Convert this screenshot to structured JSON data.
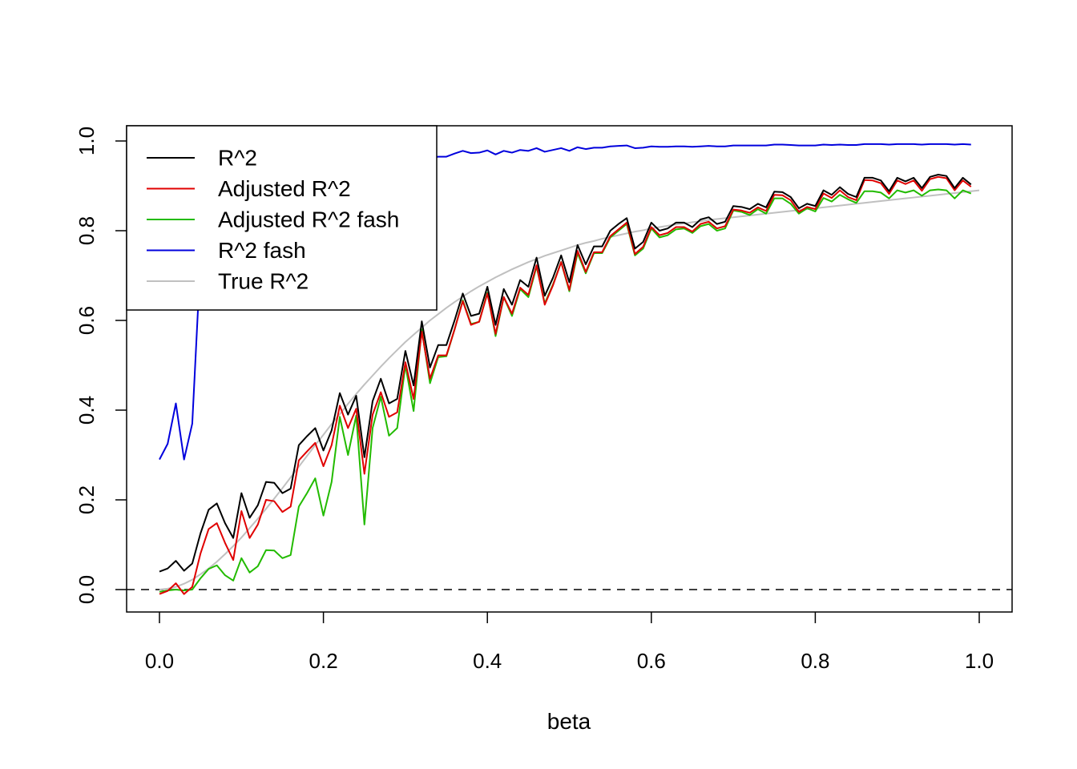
{
  "chart_data": {
    "type": "line",
    "title": "",
    "xlabel": "beta",
    "ylabel": "",
    "xlim": [
      0,
      1
    ],
    "ylim": [
      0,
      1
    ],
    "x_ticks": [
      "0.0",
      "0.2",
      "0.4",
      "0.6",
      "0.8",
      "1.0"
    ],
    "y_ticks": [
      "0.0",
      "0.2",
      "0.4",
      "0.6",
      "0.8",
      "1.0"
    ],
    "grid": false,
    "legend_position": "top-left",
    "reference_line": {
      "y": 0,
      "style": "dashed",
      "color": "#000000"
    },
    "x_start": 0,
    "x_step": 0.01,
    "series": [
      {
        "name": "R^2",
        "color": "#000000",
        "values": [
          0.04,
          0.047,
          0.064,
          0.042,
          0.058,
          0.125,
          0.178,
          0.192,
          0.148,
          0.115,
          0.215,
          0.16,
          0.188,
          0.24,
          0.238,
          0.215,
          0.225,
          0.322,
          0.342,
          0.36,
          0.31,
          0.355,
          0.438,
          0.39,
          0.432,
          0.295,
          0.42,
          0.47,
          0.415,
          0.425,
          0.532,
          0.455,
          0.598,
          0.495,
          0.545,
          0.545,
          0.6,
          0.66,
          0.61,
          0.615,
          0.675,
          0.59,
          0.67,
          0.635,
          0.69,
          0.675,
          0.74,
          0.655,
          0.695,
          0.745,
          0.685,
          0.768,
          0.725,
          0.765,
          0.765,
          0.8,
          0.815,
          0.828,
          0.76,
          0.775,
          0.818,
          0.8,
          0.805,
          0.818,
          0.818,
          0.808,
          0.825,
          0.83,
          0.815,
          0.82,
          0.855,
          0.853,
          0.848,
          0.86,
          0.852,
          0.887,
          0.886,
          0.875,
          0.85,
          0.86,
          0.855,
          0.89,
          0.88,
          0.897,
          0.882,
          0.875,
          0.918,
          0.918,
          0.912,
          0.888,
          0.918,
          0.91,
          0.918,
          0.895,
          0.92,
          0.925,
          0.922,
          0.895,
          0.918,
          0.903
        ]
      },
      {
        "name": "Adjusted R^2",
        "color": "#e00000",
        "values": [
          -0.01,
          -0.003,
          0.014,
          -0.01,
          0.006,
          0.08,
          0.135,
          0.148,
          0.104,
          0.066,
          0.175,
          0.115,
          0.145,
          0.2,
          0.197,
          0.173,
          0.185,
          0.288,
          0.308,
          0.327,
          0.275,
          0.322,
          0.41,
          0.36,
          0.403,
          0.258,
          0.39,
          0.44,
          0.385,
          0.395,
          0.507,
          0.425,
          0.575,
          0.47,
          0.522,
          0.522,
          0.58,
          0.643,
          0.59,
          0.597,
          0.66,
          0.57,
          0.652,
          0.615,
          0.673,
          0.657,
          0.723,
          0.635,
          0.678,
          0.73,
          0.668,
          0.755,
          0.708,
          0.752,
          0.752,
          0.788,
          0.803,
          0.818,
          0.748,
          0.764,
          0.808,
          0.79,
          0.795,
          0.808,
          0.808,
          0.798,
          0.815,
          0.82,
          0.805,
          0.81,
          0.847,
          0.845,
          0.84,
          0.852,
          0.844,
          0.88,
          0.879,
          0.868,
          0.842,
          0.853,
          0.848,
          0.883,
          0.873,
          0.89,
          0.875,
          0.868,
          0.913,
          0.912,
          0.906,
          0.882,
          0.912,
          0.904,
          0.912,
          0.889,
          0.915,
          0.92,
          0.917,
          0.89,
          0.912,
          0.898
        ]
      },
      {
        "name": "Adjusted R^2 fash",
        "color": "#22bb00",
        "values": [
          -0.005,
          -0.002,
          0.0,
          -0.002,
          0.0,
          0.025,
          0.046,
          0.054,
          0.032,
          0.02,
          0.07,
          0.038,
          0.052,
          0.088,
          0.087,
          0.07,
          0.077,
          0.185,
          0.215,
          0.248,
          0.165,
          0.24,
          0.385,
          0.3,
          0.388,
          0.145,
          0.36,
          0.43,
          0.343,
          0.36,
          0.5,
          0.398,
          0.58,
          0.46,
          0.518,
          0.52,
          0.58,
          0.645,
          0.592,
          0.597,
          0.662,
          0.565,
          0.652,
          0.61,
          0.67,
          0.652,
          0.72,
          0.638,
          0.68,
          0.73,
          0.665,
          0.75,
          0.705,
          0.75,
          0.75,
          0.785,
          0.8,
          0.815,
          0.745,
          0.76,
          0.805,
          0.785,
          0.79,
          0.803,
          0.805,
          0.795,
          0.81,
          0.815,
          0.8,
          0.805,
          0.845,
          0.842,
          0.835,
          0.848,
          0.838,
          0.872,
          0.872,
          0.86,
          0.838,
          0.85,
          0.843,
          0.873,
          0.865,
          0.88,
          0.87,
          0.862,
          0.888,
          0.888,
          0.885,
          0.872,
          0.89,
          0.885,
          0.89,
          0.878,
          0.89,
          0.892,
          0.89,
          0.872,
          0.89,
          0.883
        ]
      },
      {
        "name": "R^2 fash",
        "color": "#0000dd",
        "values": [
          0.29,
          0.325,
          0.415,
          0.29,
          0.37,
          0.735,
          0.82,
          0.85,
          0.8,
          0.73,
          0.9,
          0.84,
          0.87,
          0.91,
          0.91,
          0.89,
          0.9,
          0.935,
          0.943,
          0.95,
          0.93,
          0.945,
          0.962,
          0.952,
          0.963,
          0.925,
          0.958,
          0.966,
          0.955,
          0.958,
          0.97,
          0.958,
          0.972,
          0.962,
          0.965,
          0.965,
          0.972,
          0.978,
          0.973,
          0.974,
          0.979,
          0.97,
          0.978,
          0.974,
          0.98,
          0.978,
          0.984,
          0.976,
          0.98,
          0.984,
          0.978,
          0.986,
          0.982,
          0.985,
          0.985,
          0.988,
          0.989,
          0.99,
          0.984,
          0.985,
          0.988,
          0.987,
          0.987,
          0.988,
          0.988,
          0.987,
          0.988,
          0.989,
          0.988,
          0.988,
          0.99,
          0.99,
          0.99,
          0.99,
          0.99,
          0.992,
          0.992,
          0.991,
          0.99,
          0.99,
          0.99,
          0.992,
          0.991,
          0.992,
          0.991,
          0.991,
          0.993,
          0.993,
          0.993,
          0.992,
          0.993,
          0.993,
          0.993,
          0.992,
          0.993,
          0.993,
          0.993,
          0.992,
          0.993,
          0.992
        ]
      },
      {
        "name": "True R^2",
        "color": "#c0c0c0",
        "values": [
          0.0,
          0.002,
          0.006,
          0.013,
          0.022,
          0.034,
          0.047,
          0.062,
          0.079,
          0.097,
          0.116,
          0.137,
          0.158,
          0.18,
          0.203,
          0.226,
          0.25,
          0.274,
          0.298,
          0.322,
          0.345,
          0.369,
          0.391,
          0.414,
          0.436,
          0.457,
          0.477,
          0.497,
          0.516,
          0.534,
          0.552,
          0.568,
          0.584,
          0.6,
          0.614,
          0.628,
          0.641,
          0.653,
          0.665,
          0.676,
          0.686,
          0.696,
          0.705,
          0.714,
          0.722,
          0.73,
          0.737,
          0.744,
          0.75,
          0.756,
          0.762,
          0.768,
          0.773,
          0.777,
          0.782,
          0.786,
          0.79,
          0.794,
          0.798,
          0.801,
          0.805,
          0.808,
          0.811,
          0.814,
          0.816,
          0.819,
          0.821,
          0.824,
          0.826,
          0.828,
          0.83,
          0.832,
          0.834,
          0.836,
          0.838,
          0.84,
          0.842,
          0.844,
          0.846,
          0.848,
          0.85,
          0.852,
          0.854,
          0.856,
          0.858,
          0.86,
          0.862,
          0.864,
          0.866,
          0.868,
          0.87,
          0.872,
          0.874,
          0.876,
          0.878,
          0.88,
          0.882,
          0.884,
          0.886,
          0.888,
          0.89
        ]
      }
    ]
  }
}
